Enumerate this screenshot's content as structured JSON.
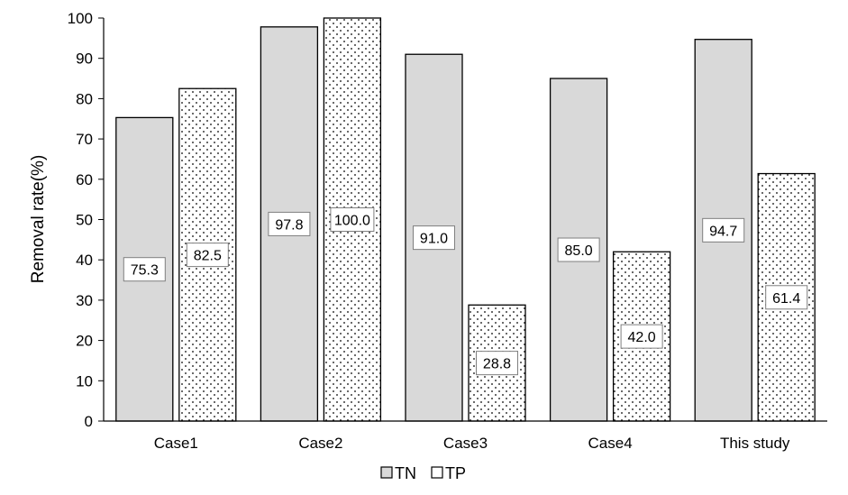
{
  "chart_data": {
    "type": "bar",
    "categories": [
      "Case1",
      "Case2",
      "Case3",
      "Case4",
      "This study"
    ],
    "series": [
      {
        "name": "TN",
        "values": [
          75.3,
          97.8,
          91.0,
          85.0,
          94.7
        ],
        "labels": [
          "75.3",
          "97.8",
          "91.0",
          "85.0",
          "94.7"
        ],
        "fill": "#d9d9d9",
        "pattern": "solid"
      },
      {
        "name": "TP",
        "values": [
          82.5,
          100.0,
          28.8,
          42.0,
          61.4
        ],
        "labels": [
          "82.5",
          "100.0",
          "28.8",
          "42.0",
          "61.4"
        ],
        "fill": "#ffffff",
        "pattern": "dots"
      }
    ],
    "title": "",
    "xlabel": "",
    "ylabel": "Removal rate(%)",
    "ylim": [
      0,
      100
    ],
    "yticks": [
      "0",
      "10",
      "20",
      "30",
      "40",
      "50",
      "60",
      "70",
      "80",
      "90",
      "100"
    ],
    "grid": false,
    "legend": "bottom",
    "colors": {
      "bar_stroke": "#000000",
      "axis": "#000000"
    }
  }
}
